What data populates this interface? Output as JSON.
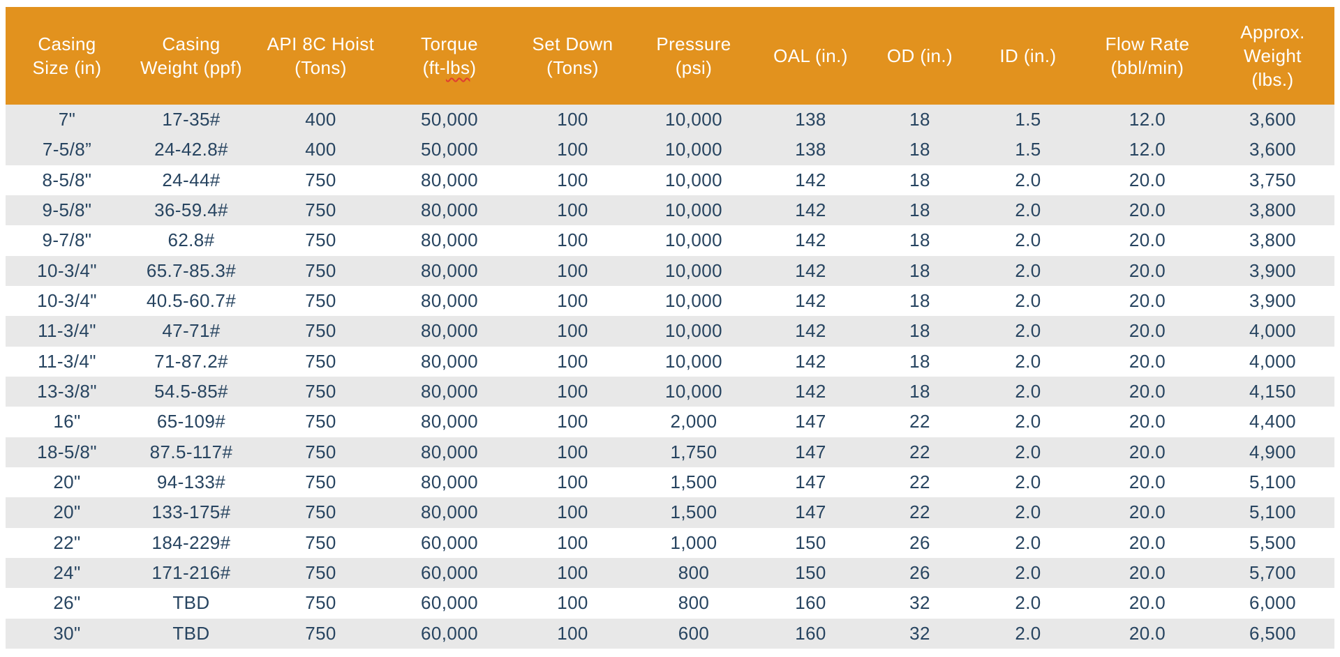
{
  "colors": {
    "header_bg": "#E2921E",
    "header_text": "#FFFFFF",
    "row_shaded_bg": "#E8E8E8",
    "row_plain_bg": "#FFFFFF",
    "cell_text": "#274460",
    "spellcheck_underline": "#E03C31"
  },
  "table": {
    "columns": [
      {
        "id": "casing-size",
        "label": "Casing Size (in)",
        "label_lines": [
          "Casing",
          "Size (in)"
        ]
      },
      {
        "id": "casing-weight",
        "label": "Casing Weight (ppf)",
        "label_lines": [
          "Casing",
          "Weight (ppf)"
        ]
      },
      {
        "id": "api-8c-hoist",
        "label": "API 8C Hoist (Tons)",
        "label_lines": [
          "API 8C Hoist",
          "(Tons)"
        ]
      },
      {
        "id": "torque",
        "label": "Torque (ft-lbs)",
        "label_lines": [
          "Torque",
          "(ft-lbs)"
        ],
        "squiggle": {
          "line": 1,
          "word": "lbs"
        }
      },
      {
        "id": "set-down",
        "label": "Set Down (Tons)",
        "label_lines": [
          "Set Down",
          "(Tons)"
        ]
      },
      {
        "id": "pressure",
        "label": "Pressure (psi)",
        "label_lines": [
          "Pressure",
          "(psi)"
        ]
      },
      {
        "id": "oal",
        "label": "OAL (in.)",
        "label_lines": [
          "OAL (in.)"
        ]
      },
      {
        "id": "od",
        "label": "OD (in.)",
        "label_lines": [
          "OD (in.)"
        ]
      },
      {
        "id": "id",
        "label": "ID (in.)",
        "label_lines": [
          "ID (in.)"
        ]
      },
      {
        "id": "flow-rate",
        "label": "Flow Rate (bbl/min)",
        "label_lines": [
          "Flow Rate",
          "(bbl/min)"
        ]
      },
      {
        "id": "approx-weight",
        "label": "Approx. Weight (lbs.)",
        "label_lines": [
          "Approx.",
          "Weight",
          "(lbs.)"
        ]
      }
    ],
    "rows": [
      [
        "7\"",
        "17-35#",
        "400",
        "50,000",
        "100",
        "10,000",
        "138",
        "18",
        "1.5",
        "12.0",
        "3,600"
      ],
      [
        "7-5/8”",
        "24-42.8#",
        "400",
        "50,000",
        "100",
        "10,000",
        "138",
        "18",
        "1.5",
        "12.0",
        "3,600"
      ],
      [
        "8-5/8\"",
        "24-44#",
        "750",
        "80,000",
        "100",
        "10,000",
        "142",
        "18",
        "2.0",
        "20.0",
        "3,750"
      ],
      [
        "9-5/8\"",
        "36-59.4#",
        "750",
        "80,000",
        "100",
        "10,000",
        "142",
        "18",
        "2.0",
        "20.0",
        "3,800"
      ],
      [
        "9-7/8\"",
        "62.8#",
        "750",
        "80,000",
        "100",
        "10,000",
        "142",
        "18",
        "2.0",
        "20.0",
        "3,800"
      ],
      [
        "10-3/4\"",
        "65.7-85.3#",
        "750",
        "80,000",
        "100",
        "10,000",
        "142",
        "18",
        "2.0",
        "20.0",
        "3,900"
      ],
      [
        "10-3/4\"",
        "40.5-60.7#",
        "750",
        "80,000",
        "100",
        "10,000",
        "142",
        "18",
        "2.0",
        "20.0",
        "3,900"
      ],
      [
        "11-3/4\"",
        "47-71#",
        "750",
        "80,000",
        "100",
        "10,000",
        "142",
        "18",
        "2.0",
        "20.0",
        "4,000"
      ],
      [
        "11-3/4\"",
        "71-87.2#",
        "750",
        "80,000",
        "100",
        "10,000",
        "142",
        "18",
        "2.0",
        "20.0",
        "4,000"
      ],
      [
        "13-3/8\"",
        "54.5-85#",
        "750",
        "80,000",
        "100",
        "10,000",
        "142",
        "18",
        "2.0",
        "20.0",
        "4,150"
      ],
      [
        "16\"",
        "65-109#",
        "750",
        "80,000",
        "100",
        "2,000",
        "147",
        "22",
        "2.0",
        "20.0",
        "4,400"
      ],
      [
        "18-5/8\"",
        "87.5-117#",
        "750",
        "80,000",
        "100",
        "1,750",
        "147",
        "22",
        "2.0",
        "20.0",
        "4,900"
      ],
      [
        "20\"",
        "94-133#",
        "750",
        "80,000",
        "100",
        "1,500",
        "147",
        "22",
        "2.0",
        "20.0",
        "5,100"
      ],
      [
        "20\"",
        "133-175#",
        "750",
        "80,000",
        "100",
        "1,500",
        "147",
        "22",
        "2.0",
        "20.0",
        "5,100"
      ],
      [
        "22\"",
        "184-229#",
        "750",
        "60,000",
        "100",
        "1,000",
        "150",
        "26",
        "2.0",
        "20.0",
        "5,500"
      ],
      [
        "24\"",
        "171-216#",
        "750",
        "60,000",
        "100",
        "800",
        "150",
        "26",
        "2.0",
        "20.0",
        "5,700"
      ],
      [
        "26\"",
        "TBD",
        "750",
        "60,000",
        "100",
        "800",
        "160",
        "32",
        "2.0",
        "20.0",
        "6,000"
      ],
      [
        "30\"",
        "TBD",
        "750",
        "60,000",
        "100",
        "600",
        "160",
        "32",
        "2.0",
        "20.0",
        "6,500"
      ]
    ],
    "shaded_row_indices": [
      0,
      1,
      3,
      5,
      7,
      9,
      11,
      13,
      15,
      17
    ]
  }
}
